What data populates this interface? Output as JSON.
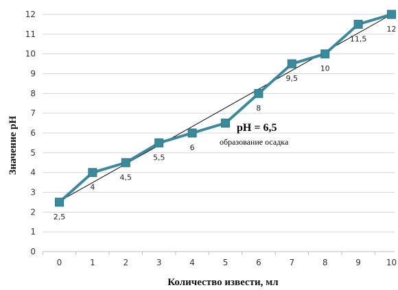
{
  "chart_data": {
    "type": "line",
    "x": [
      0,
      1,
      2,
      3,
      4,
      5,
      6,
      7,
      8,
      9,
      10
    ],
    "series": [
      {
        "values": [
          2.5,
          4,
          4.5,
          5.5,
          6,
          6.5,
          8,
          9.5,
          10,
          11.5,
          12
        ],
        "color": "#3a8a9c",
        "marker": "square"
      }
    ],
    "data_labels": [
      "2,5",
      "4",
      "4,5",
      "5,5",
      "6",
      "",
      "8",
      "9,5",
      "10",
      "11,5",
      "12"
    ],
    "trendline": {
      "type": "linear",
      "color": "#000000"
    },
    "x_ticks": [
      "0",
      "1",
      "2",
      "3",
      "4",
      "5",
      "6",
      "7",
      "8",
      "9",
      "10"
    ],
    "y_ticks": [
      "0",
      "1",
      "2",
      "3",
      "4",
      "5",
      "6",
      "7",
      "8",
      "9",
      "10",
      "11",
      "12"
    ],
    "xlabel": "Количество извести, мл",
    "ylabel": "Значение pH",
    "xlim": [
      0,
      10
    ],
    "ylim": [
      0,
      12
    ],
    "grid": "horizontal",
    "legend": "none",
    "annotation": {
      "title": "pH = 6,5",
      "subtitle": "образование осадка"
    }
  }
}
